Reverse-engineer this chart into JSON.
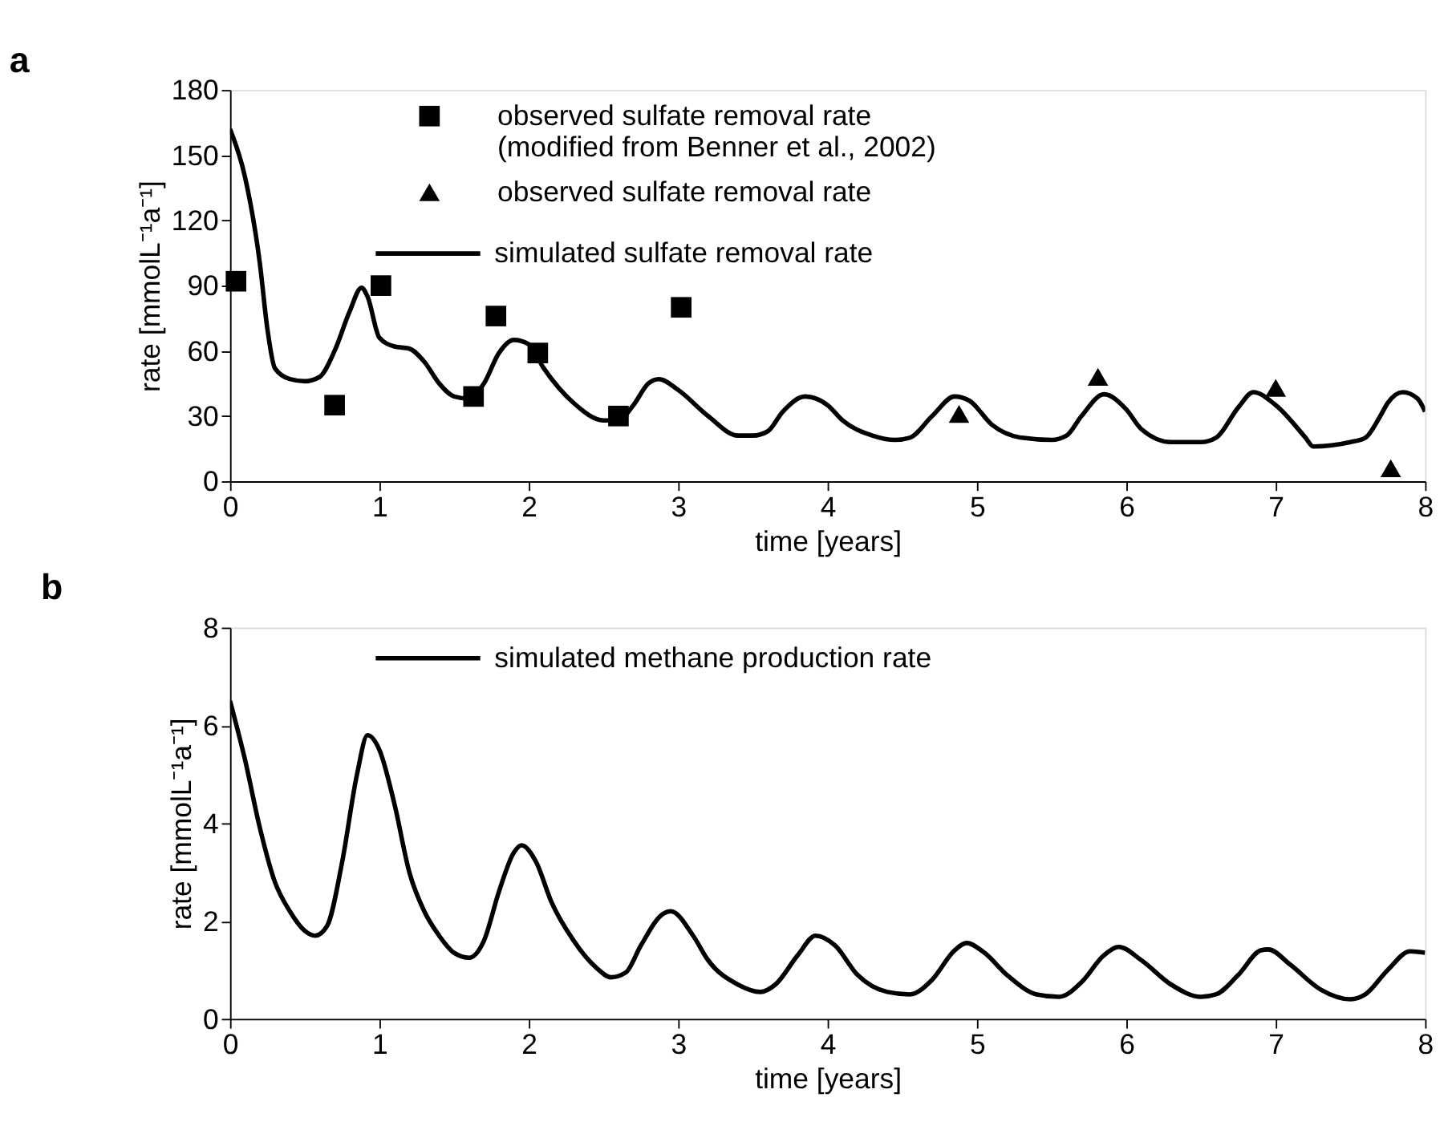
{
  "chart_data": [
    {
      "type": "line",
      "title": "a",
      "xlabel": "time [years]",
      "ylabel": "rate [mmolL⁻¹a⁻¹]",
      "xlim": [
        0,
        8
      ],
      "ylim": [
        0,
        180
      ],
      "xticks": [
        0,
        1,
        2,
        3,
        4,
        5,
        6,
        7,
        8
      ],
      "yticks": [
        0,
        30,
        60,
        90,
        120,
        150,
        180
      ],
      "grid": false,
      "legend": "top",
      "series": [
        {
          "name": "observed sulfate removal rate\n(modified from Benner et al., 2002)",
          "type": "scatter",
          "marker": "square",
          "color": "#000000",
          "x": [
            0.04,
            0.7,
            1.01,
            1.63,
            1.78,
            2.06,
            2.6,
            3.02
          ],
          "values": [
            92,
            35,
            90,
            39,
            76,
            59,
            30,
            80
          ]
        },
        {
          "name": "observed sulfate removal rate",
          "type": "scatter",
          "marker": "triangle",
          "color": "#000000",
          "x": [
            4.88,
            5.81,
            7.0,
            7.77
          ],
          "values": [
            31,
            48,
            43,
            6
          ]
        },
        {
          "name": "simulated sulfate removal rate",
          "type": "line",
          "color": "#000000",
          "x": [
            0,
            0.1,
            0.2,
            0.25,
            0.3,
            0.4,
            0.5,
            0.6,
            0.7,
            0.8,
            0.88,
            0.92,
            1.0,
            1.1,
            1.2,
            1.3,
            1.4,
            1.5,
            1.6,
            1.7,
            1.8,
            1.9,
            2.0,
            2.1,
            2.3,
            2.5,
            2.6,
            2.7,
            2.8,
            2.87,
            3.0,
            3.2,
            3.4,
            3.5,
            3.6,
            3.7,
            3.85,
            4.0,
            4.1,
            4.3,
            4.45,
            4.55,
            4.7,
            4.85,
            4.95,
            5.1,
            5.3,
            5.5,
            5.6,
            5.7,
            5.85,
            6.0,
            6.1,
            6.3,
            6.5,
            6.6,
            6.75,
            6.85,
            7.0,
            7.2,
            7.25,
            7.5,
            7.6,
            7.7,
            7.75,
            7.85,
            7.95,
            8.0
          ],
          "values": [
            162,
            140,
            100,
            70,
            52,
            47,
            46,
            48,
            60,
            78,
            89,
            85,
            66,
            62,
            61,
            55,
            45,
            39,
            38,
            45,
            59,
            65,
            63,
            52,
            36,
            28,
            28,
            35,
            45,
            47,
            42,
            30,
            21,
            21,
            23,
            32,
            39,
            35,
            28,
            21,
            19,
            20,
            30,
            39,
            37,
            26,
            20,
            19,
            21,
            30,
            40,
            33,
            24,
            18,
            18,
            20,
            34,
            41,
            35,
            20,
            16,
            18,
            20,
            30,
            36,
            41,
            38,
            32
          ]
        }
      ]
    },
    {
      "type": "line",
      "title": "b",
      "xlabel": "time [years]",
      "ylabel": "rate [mmolL⁻¹a⁻¹]",
      "xlim": [
        0,
        8
      ],
      "ylim": [
        0,
        8
      ],
      "xticks": [
        0,
        1,
        2,
        3,
        4,
        5,
        6,
        7,
        8
      ],
      "yticks": [
        0,
        2,
        4,
        6,
        8
      ],
      "grid": false,
      "legend": "top",
      "series": [
        {
          "name": "simulated methane production rate",
          "type": "line",
          "color": "#000000",
          "x": [
            0,
            0.1,
            0.2,
            0.3,
            0.4,
            0.5,
            0.57,
            0.65,
            0.75,
            0.85,
            0.92,
            1.0,
            1.1,
            1.2,
            1.3,
            1.4,
            1.5,
            1.6,
            1.7,
            1.8,
            1.9,
            1.95,
            2.05,
            2.15,
            2.3,
            2.45,
            2.55,
            2.65,
            2.75,
            2.9,
            2.95,
            3.1,
            3.2,
            3.4,
            3.55,
            3.65,
            3.8,
            3.92,
            4.05,
            4.2,
            4.4,
            4.55,
            4.7,
            4.85,
            4.93,
            5.05,
            5.2,
            5.4,
            5.55,
            5.7,
            5.85,
            5.95,
            6.1,
            6.3,
            6.5,
            6.6,
            6.75,
            6.9,
            6.95,
            7.1,
            7.3,
            7.5,
            7.6,
            7.75,
            7.9,
            8.0
          ],
          "values": [
            6.5,
            5.3,
            3.9,
            2.8,
            2.2,
            1.8,
            1.7,
            1.9,
            3.2,
            5.0,
            5.8,
            5.5,
            4.4,
            3.0,
            2.2,
            1.7,
            1.35,
            1.25,
            1.6,
            2.6,
            3.4,
            3.55,
            3.2,
            2.4,
            1.6,
            1.05,
            0.85,
            0.95,
            1.5,
            2.15,
            2.2,
            1.7,
            1.2,
            0.7,
            0.55,
            0.7,
            1.3,
            1.7,
            1.5,
            0.9,
            0.55,
            0.5,
            0.8,
            1.4,
            1.55,
            1.35,
            0.9,
            0.5,
            0.45,
            0.75,
            1.3,
            1.47,
            1.2,
            0.7,
            0.45,
            0.5,
            0.9,
            1.4,
            1.42,
            1.1,
            0.6,
            0.4,
            0.5,
            1.0,
            1.38,
            1.35
          ]
        }
      ]
    }
  ]
}
